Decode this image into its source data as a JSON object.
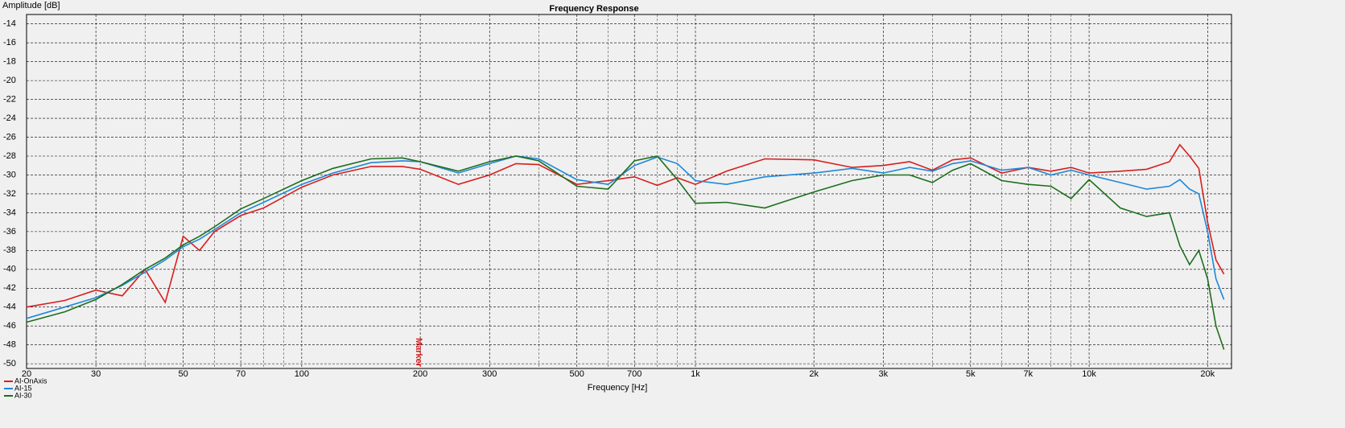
{
  "chart_data": {
    "type": "line",
    "title": "Frequency Response",
    "y_label": "Amplitude [dB]",
    "x_label": "Frequency [Hz]",
    "log_x": true,
    "grid": true,
    "legend": "bottom-left",
    "xlim": [
      20,
      23000
    ],
    "ylim": [
      -50.5,
      -13
    ],
    "xticks": [
      20,
      30,
      50,
      70,
      100,
      200,
      300,
      500,
      700,
      {
        "value": 1000,
        "label": "1k"
      },
      {
        "value": 2000,
        "label": "2k"
      },
      {
        "value": 3000,
        "label": "3k"
      },
      {
        "value": 5000,
        "label": "5k"
      },
      {
        "value": 7000,
        "label": "7k"
      },
      {
        "value": 10000,
        "label": "10k"
      },
      {
        "value": 20000,
        "label": "20k"
      }
    ],
    "xminor": [
      40,
      60,
      80,
      90,
      400,
      600,
      800,
      900,
      4000,
      6000,
      8000,
      9000
    ],
    "yticks": [
      -14,
      -16,
      -18,
      -20,
      -22,
      -24,
      -26,
      -28,
      -30,
      -32,
      -34,
      -36,
      -38,
      -40,
      -42,
      -44,
      -46,
      -48,
      -50
    ],
    "marker": {
      "x": 198,
      "label": "Marker"
    },
    "x": [
      20,
      25,
      30,
      35,
      40,
      45,
      50,
      55,
      60,
      70,
      80,
      100,
      120,
      150,
      180,
      200,
      250,
      300,
      350,
      400,
      500,
      600,
      700,
      800,
      900,
      1000,
      1200,
      1500,
      2000,
      2500,
      3000,
      3500,
      4000,
      4500,
      5000,
      6000,
      7000,
      8000,
      9000,
      10000,
      12000,
      14000,
      16000,
      17000,
      18000,
      19000,
      20000,
      21000,
      22000
    ],
    "series": [
      {
        "name": "AI-OnAxis",
        "color": "#d81e1e",
        "values": [
          -44,
          -43.3,
          -42.2,
          -42.8,
          -40,
          -43.5,
          -36.5,
          -38,
          -36,
          -34.3,
          -33.5,
          -31.3,
          -30,
          -29.1,
          -29.1,
          -29.4,
          -31,
          -30,
          -28.8,
          -28.9,
          -31,
          -30.6,
          -30.2,
          -31.1,
          -30.3,
          -31,
          -29.6,
          -28.3,
          -28.4,
          -29.2,
          -29,
          -28.6,
          -29.5,
          -28.4,
          -28.2,
          -29.8,
          -29.2,
          -29.6,
          -29.2,
          -29.8,
          -29.6,
          -29.4,
          -28.6,
          -26.8,
          -28,
          -29.3,
          -35,
          -39,
          -40.5
        ]
      },
      {
        "name": "AI-15",
        "color": "#1e88d8",
        "values": [
          -45.2,
          -44,
          -43,
          -41.7,
          -40.3,
          -39,
          -37.6,
          -36.8,
          -35.8,
          -34,
          -32.9,
          -31,
          -29.8,
          -28.7,
          -28.5,
          -28.6,
          -29.8,
          -28.8,
          -28,
          -28.3,
          -30.5,
          -31,
          -29,
          -28.1,
          -28.8,
          -30.6,
          -31,
          -30.2,
          -29.8,
          -29.3,
          -29.8,
          -29.2,
          -29.6,
          -28.8,
          -28.5,
          -29.5,
          -29.2,
          -30,
          -29.5,
          -30,
          -30.8,
          -31.5,
          -31.2,
          -30.5,
          -31.5,
          -32,
          -36,
          -41,
          -43.2
        ]
      },
      {
        "name": "AI-30",
        "color": "#1e6e1e",
        "values": [
          -45.6,
          -44.5,
          -43.2,
          -41.6,
          -40,
          -38.8,
          -37.4,
          -36.5,
          -35.5,
          -33.6,
          -32.5,
          -30.6,
          -29.3,
          -28.3,
          -28.2,
          -28.6,
          -29.6,
          -28.6,
          -28,
          -28.5,
          -31.2,
          -31.5,
          -28.5,
          -28,
          -30.5,
          -33,
          -32.9,
          -33.5,
          -31.8,
          -30.6,
          -30,
          -30,
          -30.8,
          -29.5,
          -28.8,
          -30.6,
          -31,
          -31.2,
          -32.5,
          -30.5,
          -33.5,
          -34.4,
          -34,
          -37.5,
          -39.5,
          -38,
          -41,
          -46,
          -48.5
        ]
      }
    ]
  }
}
